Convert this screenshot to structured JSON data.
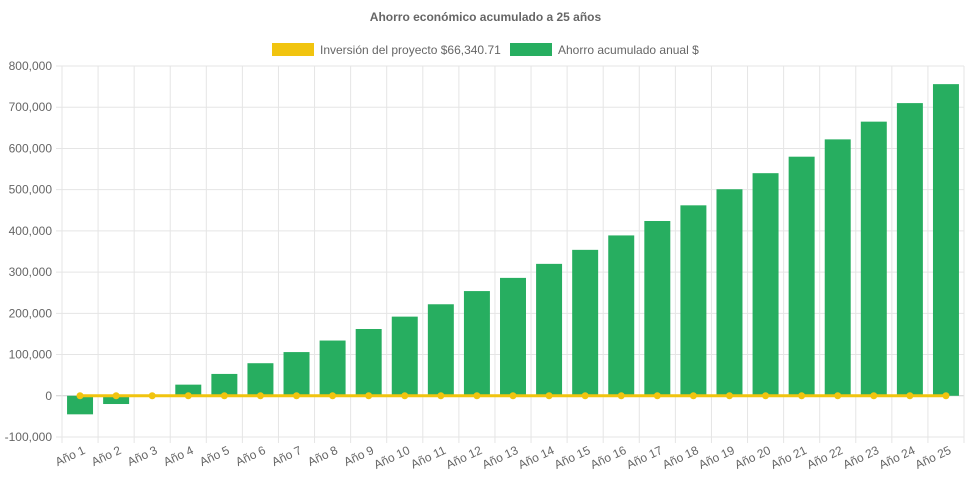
{
  "chart_data": {
    "type": "bar",
    "title": "Ahorro económico acumulado a 25 años",
    "categories": [
      "Año 1",
      "Año 2",
      "Año 3",
      "Año 4",
      "Año 5",
      "Año 6",
      "Año 7",
      "Año 8",
      "Año 9",
      "Año 10",
      "Año 11",
      "Año 12",
      "Año 13",
      "Año 14",
      "Año 15",
      "Año 16",
      "Año 17",
      "Año 18",
      "Año 19",
      "Año 20",
      "Año 21",
      "Año 22",
      "Año 23",
      "Año 24",
      "Año 25"
    ],
    "series": [
      {
        "name": "Inversión del proyecto $66,340.71",
        "type": "line",
        "color": "#f1c40f",
        "values": [
          0,
          0,
          0,
          0,
          0,
          0,
          0,
          0,
          0,
          0,
          0,
          0,
          0,
          0,
          0,
          0,
          0,
          0,
          0,
          0,
          0,
          0,
          0,
          0,
          0
        ]
      },
      {
        "name": "Ahorro acumulado anual $",
        "type": "bar",
        "color": "#27ae60",
        "values": [
          -45000,
          -20000,
          3000,
          27000,
          53000,
          79000,
          106000,
          134000,
          162000,
          192000,
          222000,
          254000,
          286000,
          320000,
          354000,
          389000,
          424000,
          462000,
          501000,
          540000,
          580000,
          622000,
          665000,
          710000,
          756000
        ]
      }
    ],
    "ylim": [
      -100000,
      800000
    ],
    "yticks": [
      800000,
      700000,
      600000,
      500000,
      400000,
      300000,
      200000,
      100000,
      0,
      -100000
    ],
    "ytick_labels": [
      "800,000",
      "700,000",
      "600,000",
      "500,000",
      "400,000",
      "300,000",
      "200,000",
      "100,000",
      "0",
      "-100,000"
    ],
    "grid": true,
    "legend_position": "top",
    "xlabel": "",
    "ylabel": ""
  }
}
